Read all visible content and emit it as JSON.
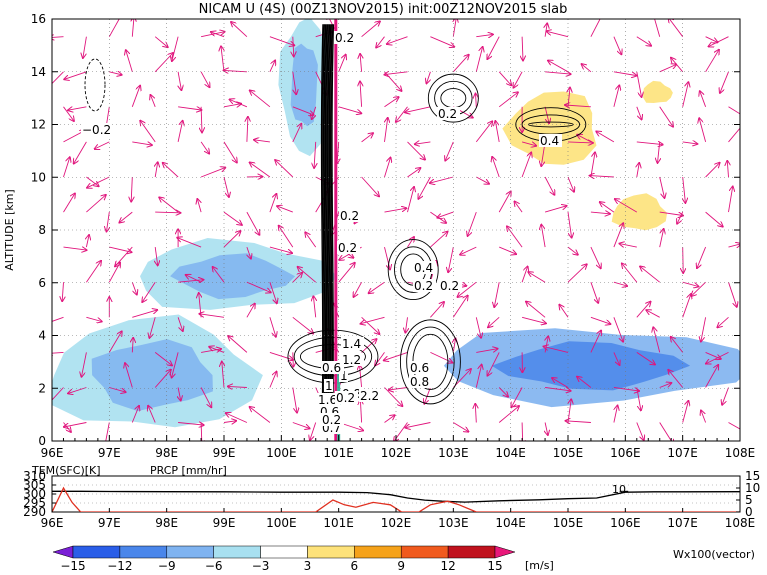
{
  "chart_data": [
    {
      "type": "heatmap",
      "title": "NICAM U (4S) (00Z13NOV2015) init:00Z12NOV2015 slab",
      "xlabel": "",
      "ylabel": "ALTITUDE [km]",
      "x_ticks": [
        "96E",
        "97E",
        "98E",
        "99E",
        "100E",
        "101E",
        "102E",
        "103E",
        "104E",
        "105E",
        "106E",
        "107E",
        "108E"
      ],
      "y_ticks": [
        "0",
        "2",
        "4",
        "6",
        "8",
        "10",
        "12",
        "14",
        "16"
      ],
      "xlim": [
        96,
        108
      ],
      "ylim": [
        0,
        16
      ],
      "grid": true,
      "units": "m/s",
      "colorbar": {
        "levels": [
          -15,
          -12,
          -9,
          -6,
          -3,
          3,
          6,
          9,
          12,
          15
        ],
        "tick_labels": [
          "−15",
          "−12",
          "−9",
          "−6",
          "−3",
          "3",
          "6",
          "9",
          "12",
          "15"
        ],
        "colors": [
          "#7a1fd6",
          "#2a5ee8",
          "#4a86ea",
          "#7fb3f0",
          "#a8e0f0",
          "#ffffff",
          "#fde27a",
          "#f5a21a",
          "#f05a1e",
          "#c0121e",
          "#e8187a"
        ],
        "unit_label": "[m/s]"
      },
      "vector_label": "Wx100(vector)",
      "contour_labels": [
        "0.2",
        "−0.2",
        "0.2",
        "0.4",
        "0.2",
        "0.2",
        "0.4",
        "0.2",
        "1.4",
        "1.2",
        "1",
        "0.8",
        "0.6",
        "0.8",
        "0.6",
        "1",
        "1.6",
        "0.6",
        "2.2",
        "0.2",
        "0.2",
        "0.7",
        "0.2"
      ],
      "regions": [
        {
          "sign": "negative",
          "x0": 96.0,
          "x1": 99.5,
          "y0": 0.5,
          "y1": 4.5,
          "level": -6
        },
        {
          "sign": "negative",
          "x0": 97.5,
          "x1": 100.8,
          "y0": 5.0,
          "y1": 7.5,
          "level": -6
        },
        {
          "sign": "negative",
          "x0": 102.8,
          "x1": 108.0,
          "y0": 1.5,
          "y1": 4.2,
          "level": -9
        },
        {
          "sign": "negative",
          "x0": 96.0,
          "x1": 108.0,
          "y0": 12.5,
          "y1": 16.0,
          "level": -3
        },
        {
          "sign": "negative",
          "x0": 100.0,
          "x1": 100.8,
          "y0": 11.0,
          "y1": 16.0,
          "level": -6
        },
        {
          "sign": "positive",
          "x0": 104.0,
          "x1": 105.5,
          "y0": 10.5,
          "y1": 13.2,
          "level": 3
        },
        {
          "sign": "positive",
          "x0": 105.8,
          "x1": 106.7,
          "y0": 8.0,
          "y1": 9.3,
          "level": 3
        },
        {
          "sign": "positive",
          "x0": 106.3,
          "x1": 106.8,
          "y0": 12.8,
          "y1": 13.6,
          "level": 3
        }
      ]
    },
    {
      "type": "line",
      "title": "",
      "series": [
        {
          "name": "TEM(SFC)[K]",
          "color": "#000000",
          "x": [
            96.0,
            96.5,
            97.0,
            98.0,
            99.0,
            100.0,
            101.0,
            101.5,
            101.9,
            102.2,
            102.5,
            102.8,
            103.2,
            103.8,
            104.5,
            105.0,
            105.5,
            106.0,
            106.5,
            107.0,
            108.0
          ],
          "values": [
            301.5,
            301.5,
            301.4,
            301.3,
            301.2,
            301.0,
            301.0,
            300.8,
            299.6,
            297.8,
            296.6,
            296.0,
            295.5,
            296.2,
            296.8,
            297.4,
            297.8,
            301.0,
            301.2,
            301.2,
            301.3
          ]
        },
        {
          "name": "PRCP [mm/hr]",
          "color": "#e03020",
          "x": [
            96.0,
            96.05,
            96.2,
            96.35,
            96.5,
            97.0,
            100.6,
            100.9,
            101.1,
            101.3,
            101.6,
            101.9,
            102.1,
            102.4,
            102.6,
            102.9,
            103.1,
            103.4,
            104.0,
            106.0,
            108.0
          ],
          "values": [
            0.0,
            2.5,
            10.0,
            4.0,
            0.0,
            0.0,
            0.0,
            5.0,
            3.0,
            2.0,
            4.0,
            3.0,
            0.0,
            0.0,
            3.0,
            4.5,
            3.0,
            0.0,
            0.0,
            0.0,
            0.0
          ]
        }
      ],
      "xlim": [
        96,
        108
      ],
      "ylim_left": [
        290,
        310
      ],
      "ylim_right": [
        0,
        15
      ],
      "left_ticks": [
        "310",
        "305",
        "300",
        "295",
        "290"
      ],
      "right_ticks": [
        "15",
        "10",
        "5",
        "0"
      ],
      "x_ticks": [
        "96E",
        "97E",
        "98E",
        "99E",
        "100E",
        "101E",
        "102E",
        "103E",
        "104E",
        "105E",
        "106E",
        "107E",
        "108E"
      ],
      "annotation": "10"
    }
  ]
}
